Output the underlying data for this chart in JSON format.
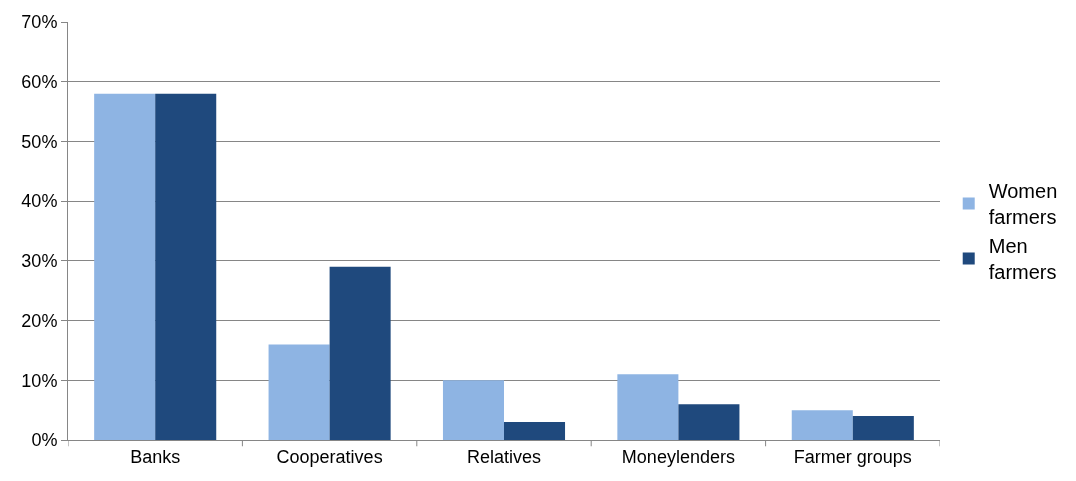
{
  "chart_data": {
    "type": "bar",
    "categories": [
      "Banks",
      "Cooperatives",
      "Relatives",
      "Moneylenders",
      "Farmer groups"
    ],
    "series": [
      {
        "name": "Women farmers",
        "color": "#8eb4e3",
        "values": [
          58,
          16,
          10,
          11,
          5
        ]
      },
      {
        "name": "Men farmers",
        "color": "#1f497d",
        "values": [
          58,
          29,
          3,
          6,
          4
        ]
      }
    ],
    "ylim": [
      0,
      70
    ],
    "yticks": [
      {
        "value": 0,
        "label": "0%"
      },
      {
        "value": 10,
        "label": "10%"
      },
      {
        "value": 20,
        "label": "20%"
      },
      {
        "value": 30,
        "label": "30%"
      },
      {
        "value": 40,
        "label": "40%"
      },
      {
        "value": 50,
        "label": "50%"
      },
      {
        "value": 60,
        "label": "60%"
      },
      {
        "value": 70,
        "label": "70%"
      }
    ],
    "grid": "y",
    "legend": "right"
  }
}
